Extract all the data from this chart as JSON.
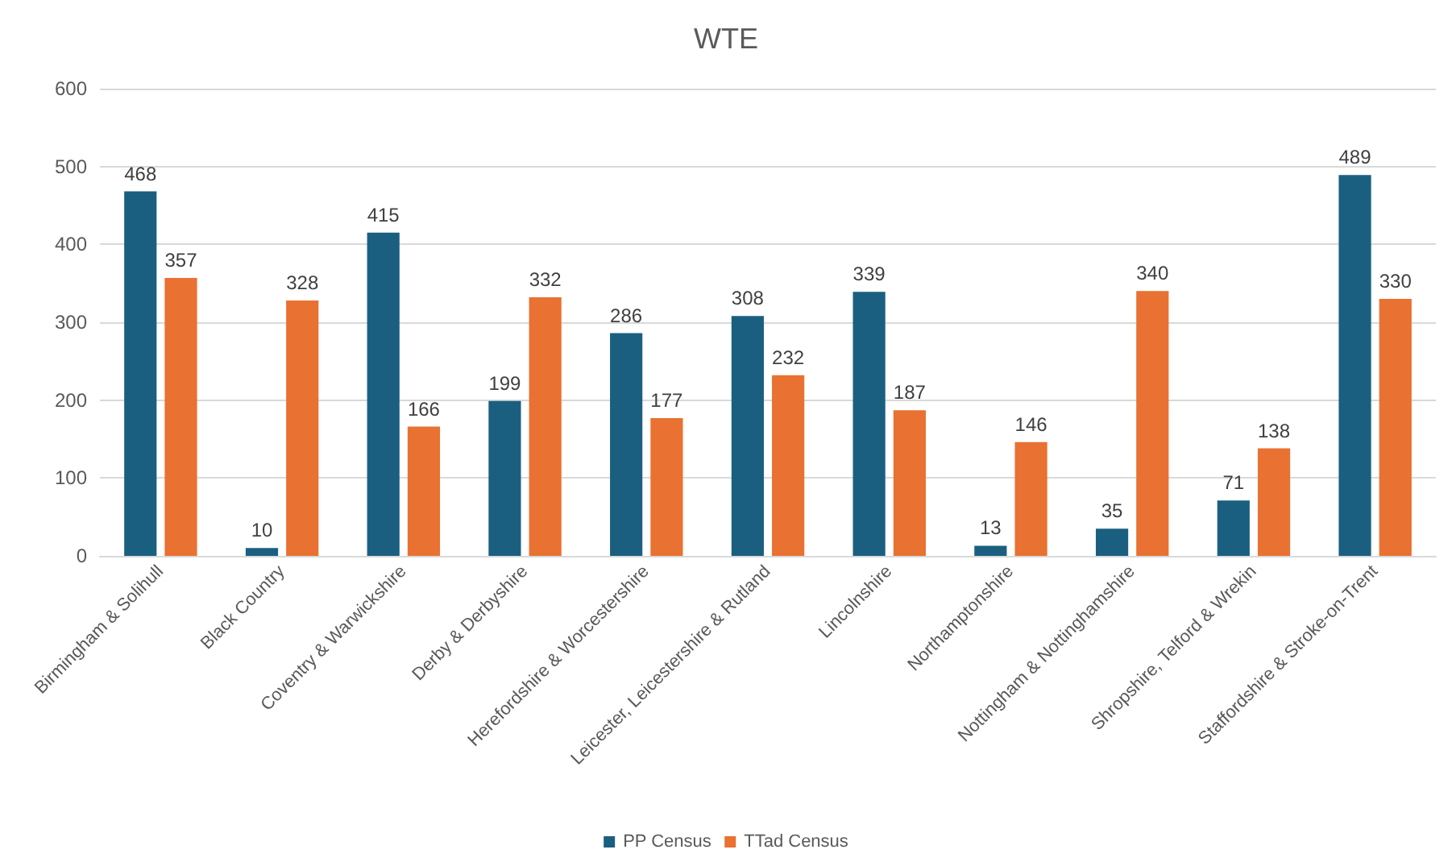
{
  "chart_data": {
    "type": "bar",
    "title": "WTE",
    "categories": [
      "Birmingham & Solihull",
      "Black Country",
      "Coventry & Warwickshire",
      "Derby & Derbyshire",
      "Herefordshire & Worcestershire",
      "Leicester, Leicestershire & Rutland",
      "Lincolnshire",
      "Northamptonshire",
      "Nottingham & Nottinghamshire",
      "Shropshire, Telford & Wrekin",
      "Staffordshire & Stroke-on-Trent"
    ],
    "series": [
      {
        "name": "PP Census",
        "color": "#1a5f80",
        "values": [
          468,
          10,
          415,
          199,
          286,
          308,
          339,
          13,
          35,
          71,
          489
        ]
      },
      {
        "name": "TTad Census",
        "color": "#e97132",
        "values": [
          357,
          328,
          166,
          332,
          177,
          232,
          187,
          146,
          340,
          138,
          330
        ]
      }
    ],
    "ylim": [
      0,
      600
    ],
    "yticks": [
      0,
      100,
      200,
      300,
      400,
      500,
      600
    ],
    "grid": "y",
    "legend": "bottom",
    "data_labels": true
  }
}
